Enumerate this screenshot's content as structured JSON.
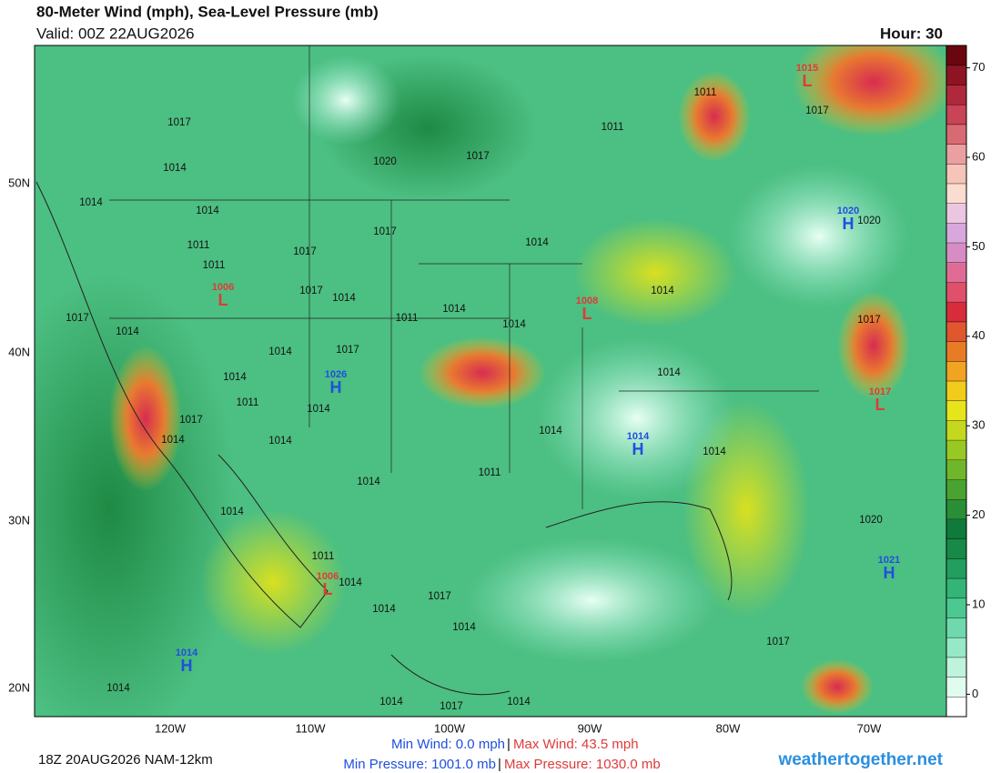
{
  "header": {
    "title": "80-Meter Wind (mph), Sea-Level Pressure (mb)",
    "valid": "Valid: 00Z 22AUG2026",
    "hour": "Hour: 30"
  },
  "map": {
    "lat_labels": [
      "50N",
      "40N",
      "30N",
      "20N"
    ],
    "lon_labels": [
      "120W",
      "110W",
      "100W",
      "90W",
      "80W",
      "70W"
    ],
    "isobar_labels": [
      "1017",
      "1014",
      "1014",
      "1014",
      "1011",
      "1011",
      "1017",
      "1017",
      "1020",
      "1017",
      "1011",
      "1011",
      "1017",
      "1014",
      "1014",
      "1014",
      "1014",
      "1011",
      "1017",
      "1014",
      "1017",
      "1014",
      "1014",
      "1017",
      "1014",
      "1011",
      "1014",
      "1017",
      "1014",
      "1014",
      "1014",
      "1011",
      "1014",
      "1014",
      "1014",
      "1017",
      "1020",
      "1014",
      "1011",
      "1014",
      "1014",
      "1017",
      "1014",
      "1017",
      "1020",
      "1014",
      "1014",
      "1017",
      "1014"
    ],
    "centers": [
      {
        "letter": "L",
        "pressure": "1015"
      },
      {
        "letter": "H",
        "pressure": "1020"
      },
      {
        "letter": "L",
        "pressure": "1006"
      },
      {
        "letter": "L",
        "pressure": "1008"
      },
      {
        "letter": "H",
        "pressure": "1026"
      },
      {
        "letter": "L",
        "pressure": "1017"
      },
      {
        "letter": "H",
        "pressure": "1014"
      },
      {
        "letter": "L",
        "pressure": "1006"
      },
      {
        "letter": "H",
        "pressure": "1021"
      },
      {
        "letter": "H",
        "pressure": "1014"
      }
    ],
    "low_color": "#e03a3a",
    "high_color": "#1f4fe0"
  },
  "colorbar": {
    "range": [
      -2.5,
      72.5
    ],
    "ticks": [
      0,
      10,
      20,
      30,
      40,
      50,
      60,
      70
    ],
    "colors": [
      "#ffffff",
      "#e2fbef",
      "#bff3dc",
      "#97e8c6",
      "#6fd9ad",
      "#4cc893",
      "#33b578",
      "#229e5e",
      "#178a4a",
      "#107a3d",
      "#2a8e36",
      "#4aa230",
      "#70b62a",
      "#98c824",
      "#c4d81e",
      "#e6e41a",
      "#f2cc1c",
      "#f0a422",
      "#e87c26",
      "#e0562e",
      "#d82c3c",
      "#e0506a",
      "#e06c96",
      "#d88cc4",
      "#d8a8dc",
      "#ecc6e0",
      "#fadcd0",
      "#f6c4b8",
      "#eaa0a0",
      "#d86a74",
      "#c84456",
      "#b0283c",
      "#8e1424",
      "#6a0610"
    ]
  },
  "footer": {
    "init": "18Z 20AUG2026 NAM-12km",
    "min_wind": "Min Wind:  0.0 mph",
    "max_wind": "Max Wind: 43.5 mph",
    "separator": "|",
    "min_pressure": "Min Pressure: 1001.0 mb",
    "max_pressure": "Max Pressure: 1030.0 mb",
    "site": "weathertogether.net"
  }
}
